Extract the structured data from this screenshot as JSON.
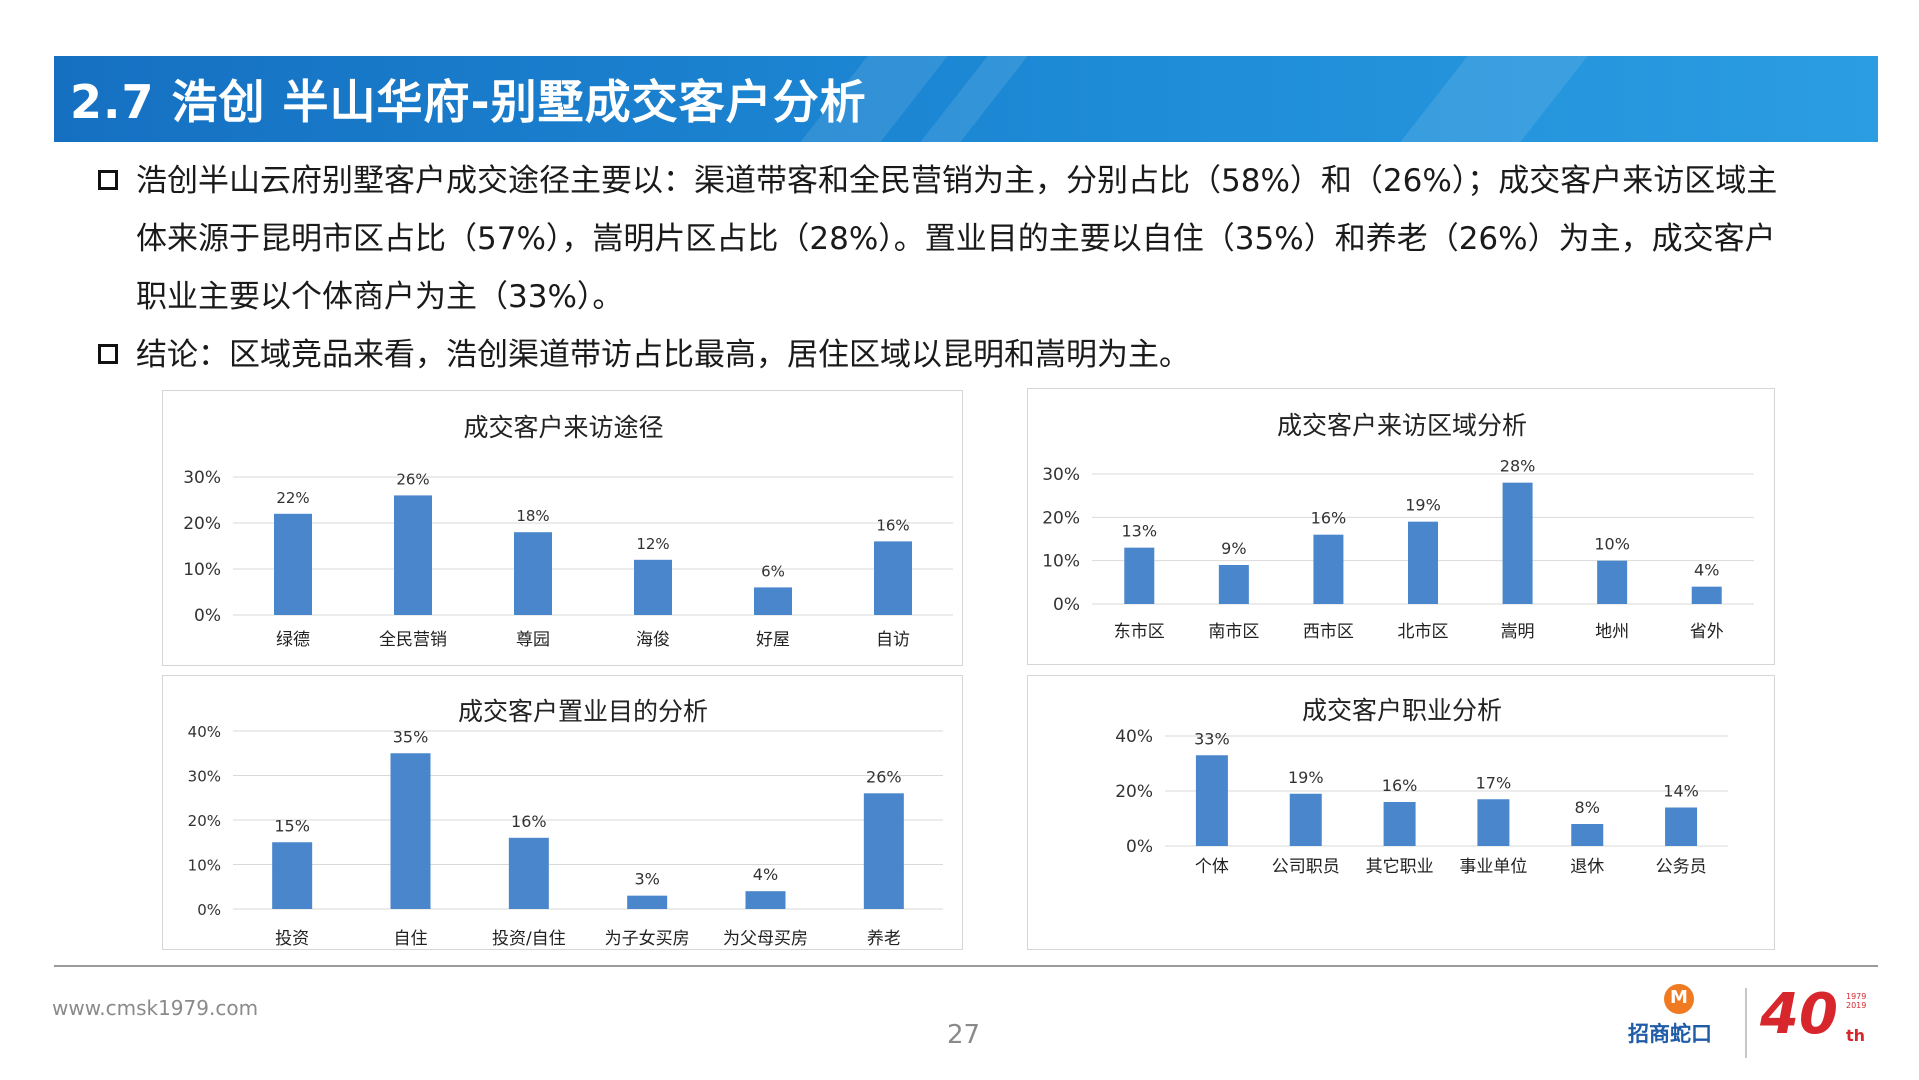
{
  "header": {
    "title": "2.7 浩创 半山华府-别墅成交客户分析"
  },
  "bullets": [
    {
      "lines": [
        "浩创半山云府别墅客户成交途径主要以：渠道带客和全民营销为主，分别占比（58%）和（26%）；成交客户来访区域主",
        "体来源于昆明市区占比（57%），嵩明片区占比（28%）。置业目的主要以自住（35%）和养老（26%）为主，成交客户",
        "职业主要以个体商户为主（33%）。"
      ]
    },
    {
      "lines": [
        "结论：区域竞品来看，浩创渠道带访占比最高，居住区域以昆明和嵩明为主。"
      ]
    }
  ],
  "chart_data": [
    {
      "type": "bar",
      "title": "成交客户来访途径",
      "categories": [
        "绿德",
        "全民营销",
        "尊园",
        "海俊",
        "好屋",
        "自访"
      ],
      "values": [
        22,
        26,
        18,
        12,
        6,
        16
      ],
      "data_labels": [
        "22%",
        "26%",
        "18%",
        "12%",
        "6%",
        "16%"
      ],
      "yticks": [
        "0%",
        "10%",
        "20%",
        "30%"
      ],
      "ylim": [
        0,
        30
      ],
      "grid": true,
      "bar_color": "#4a86cc"
    },
    {
      "type": "bar",
      "title": "成交客户来访区域分析",
      "categories": [
        "东市区",
        "南市区",
        "西市区",
        "北市区",
        "嵩明",
        "地州",
        "省外"
      ],
      "values": [
        13,
        9,
        16,
        19,
        28,
        10,
        4
      ],
      "data_labels": [
        "13%",
        "9%",
        "16%",
        "19%",
        "28%",
        "10%",
        "4%"
      ],
      "yticks": [
        "0%",
        "10%",
        "20%",
        "30%"
      ],
      "ylim": [
        0,
        30
      ],
      "grid": true,
      "bar_color": "#4a86cc"
    },
    {
      "type": "bar",
      "title": "成交客户置业目的分析",
      "categories": [
        "投资",
        "自住",
        "投资/自住",
        "为子女买房",
        "为父母买房",
        "养老"
      ],
      "values": [
        15,
        35,
        16,
        3,
        4,
        26
      ],
      "data_labels": [
        "15%",
        "35%",
        "16%",
        "3%",
        "4%",
        "26%"
      ],
      "yticks": [
        "0%",
        "10%",
        "20%",
        "30%",
        "40%"
      ],
      "ylim": [
        0,
        40
      ],
      "grid": true,
      "bar_color": "#4a86cc"
    },
    {
      "type": "bar",
      "title": "成交客户职业分析",
      "categories": [
        "个体",
        "公司职员",
        "其它职业",
        "事业单位",
        "退休",
        "公务员"
      ],
      "values": [
        33,
        19,
        16,
        17,
        8,
        14
      ],
      "data_labels": [
        "33%",
        "19%",
        "16%",
        "17%",
        "8%",
        "14%"
      ],
      "yticks": [
        "0%",
        "20%",
        "40%"
      ],
      "ylim": [
        0,
        40
      ],
      "grid": true,
      "bar_color": "#4a86cc"
    }
  ],
  "footer": {
    "url": "www.cmsk1979.com",
    "page_number": "27",
    "logo_name": "招商蛇口",
    "anniversary_number": "40",
    "anniversary_suffix": "th",
    "anniversary_years": "1979 2019"
  }
}
